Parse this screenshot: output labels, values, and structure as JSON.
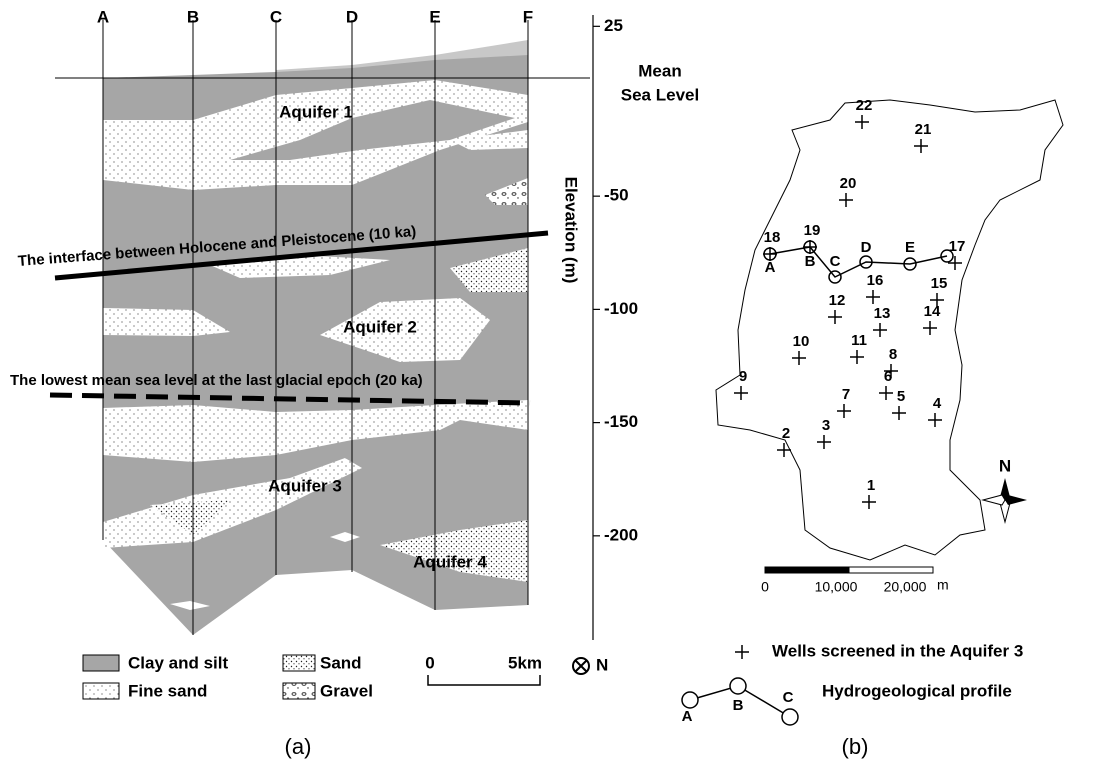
{
  "panel_a": {
    "caption": "(a)",
    "profile_labels": [
      "A",
      "B",
      "C",
      "D",
      "E",
      "F"
    ],
    "axis": {
      "title": "Elevation (m)",
      "ylim": [
        30,
        -246
      ],
      "yticks": [
        25,
        -50,
        -100,
        -150,
        -200
      ]
    },
    "sea_level": {
      "line1": "Mean",
      "line2": "Sea Level"
    },
    "aquifers": [
      "Aquifer 1",
      "Aquifer 2",
      "Aquifer 3",
      "Aquifer 4"
    ],
    "annotations": {
      "interface": "The interface between Holocene and Pleistocene (10 ka)",
      "lowest_sea_level": "The lowest mean sea level at the last glacial epoch (20 ka)"
    },
    "legend": [
      "Clay and silt",
      "Sand",
      "Fine sand",
      "Gravel"
    ],
    "scale": {
      "start": "0",
      "end": "5km"
    },
    "north": "N"
  },
  "panel_b": {
    "caption": "(b)",
    "wells": [
      "22",
      "21",
      "20",
      "18",
      "19",
      "17",
      "16",
      "15",
      "12",
      "14",
      "13",
      "10",
      "11",
      "8",
      "9",
      "6",
      "7",
      "5",
      "4",
      "3",
      "2",
      "1"
    ],
    "profile_points": [
      "A",
      "B",
      "C",
      "D",
      "E"
    ],
    "scale": {
      "labels": [
        "0",
        "10,000",
        "20,000"
      ],
      "unit": "m"
    },
    "north": "N",
    "legend": {
      "wells": "Wells screened in the Aquifer 3",
      "profile": "Hydrogeological profile",
      "profile_points": [
        "A",
        "B",
        "C"
      ]
    }
  }
}
